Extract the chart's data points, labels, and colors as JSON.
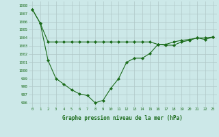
{
  "line1_x": [
    0,
    1,
    2,
    3,
    4,
    5,
    6,
    7,
    8,
    9,
    10,
    11,
    12,
    13,
    14,
    15,
    16,
    17,
    18,
    19,
    20,
    21,
    22,
    23
  ],
  "line1_y": [
    1007.5,
    1005.8,
    1003.5,
    1003.5,
    1003.5,
    1003.5,
    1003.5,
    1003.5,
    1003.5,
    1003.5,
    1003.5,
    1003.5,
    1003.5,
    1003.5,
    1003.5,
    1003.5,
    1003.2,
    1003.2,
    1003.5,
    1003.7,
    1003.8,
    1004.0,
    1004.0,
    1004.1
  ],
  "line2_x": [
    0,
    1,
    2,
    3,
    4,
    5,
    6,
    7,
    8,
    9,
    10,
    11,
    12,
    13,
    14,
    15,
    16,
    17,
    18,
    19,
    20,
    21,
    22,
    23
  ],
  "line2_y": [
    1007.5,
    1005.8,
    1001.2,
    999.0,
    998.3,
    997.6,
    997.1,
    996.9,
    996.0,
    996.3,
    997.8,
    999.0,
    1001.0,
    1001.5,
    1001.5,
    1002.1,
    1003.2,
    1003.1,
    1003.1,
    1003.5,
    1003.7,
    1004.0,
    1003.8,
    1004.1
  ],
  "line_color": "#1a6b1a",
  "background_color": "#cce8e8",
  "grid_color": "#b0c8c8",
  "xlabel": "Graphe pression niveau de la mer (hPa)",
  "ylim": [
    995.5,
    1008.5
  ],
  "xlim": [
    -0.5,
    23.5
  ],
  "yticks": [
    996,
    997,
    998,
    999,
    1000,
    1001,
    1002,
    1003,
    1004,
    1005,
    1006,
    1007,
    1008
  ],
  "xticks": [
    0,
    1,
    2,
    3,
    4,
    5,
    6,
    7,
    8,
    9,
    10,
    11,
    12,
    13,
    14,
    15,
    16,
    17,
    18,
    19,
    20,
    21,
    22,
    23
  ],
  "marker": "D",
  "markersize": 2.0,
  "linewidth": 0.8,
  "tick_fontsize": 4.0,
  "xlabel_fontsize": 5.5
}
